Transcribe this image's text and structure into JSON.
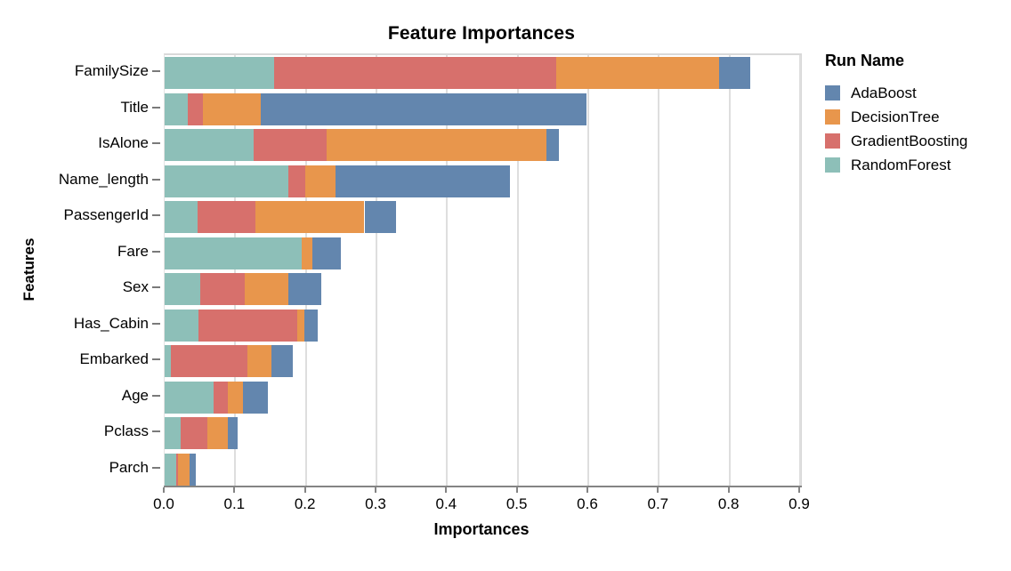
{
  "title": "Feature Importances",
  "axes": {
    "x": {
      "label": "Importances",
      "tick_labels": [
        "0.0",
        "0.1",
        "0.2",
        "0.3",
        "0.4",
        "0.5",
        "0.6",
        "0.7",
        "0.8",
        "0.9"
      ],
      "min": 0,
      "max": 0.9
    },
    "y": {
      "label": "Features"
    }
  },
  "legend": {
    "title": "Run Name",
    "position": "right",
    "items": [
      {
        "label": "AdaBoost",
        "color": "#6386ae"
      },
      {
        "label": "DecisionTree",
        "color": "#e8964c"
      },
      {
        "label": "GradientBoosting",
        "color": "#d7706c"
      },
      {
        "label": "RandomForest",
        "color": "#8dbfb8"
      }
    ]
  },
  "chart_data": {
    "type": "bar",
    "orientation": "horizontal",
    "stacked": true,
    "title": "Feature Importances",
    "xlabel": "Importances",
    "ylabel": "Features",
    "xlim": [
      0,
      0.9
    ],
    "grid": true,
    "legend_position": "right",
    "categories": [
      "FamilySize",
      "Title",
      "IsAlone",
      "Name_length",
      "PassengerId",
      "Fare",
      "Sex",
      "Has_Cabin",
      "Embarked",
      "Age",
      "Pclass",
      "Parch"
    ],
    "stack_order_left_to_right": [
      "RandomForest",
      "GradientBoosting",
      "DecisionTree",
      "AdaBoost"
    ],
    "series": [
      {
        "name": "RandomForest",
        "color": "#8dbfb8",
        "values": [
          0.155,
          0.033,
          0.126,
          0.175,
          0.047,
          0.194,
          0.05,
          0.048,
          0.009,
          0.069,
          0.023,
          0.016
        ]
      },
      {
        "name": "GradientBoosting",
        "color": "#d7706c",
        "values": [
          0.4,
          0.021,
          0.103,
          0.024,
          0.081,
          0.0,
          0.064,
          0.14,
          0.108,
          0.02,
          0.037,
          0.003
        ]
      },
      {
        "name": "DecisionTree",
        "color": "#e8964c",
        "values": [
          0.23,
          0.082,
          0.312,
          0.043,
          0.155,
          0.015,
          0.061,
          0.01,
          0.034,
          0.022,
          0.029,
          0.016
        ]
      },
      {
        "name": "AdaBoost",
        "color": "#6386ae",
        "values": [
          0.045,
          0.461,
          0.018,
          0.247,
          0.045,
          0.04,
          0.047,
          0.019,
          0.03,
          0.035,
          0.014,
          0.009
        ]
      }
    ],
    "style_colors": {
      "axis_line": "#848484",
      "gridline": "#dedede",
      "text": "#000000"
    }
  }
}
